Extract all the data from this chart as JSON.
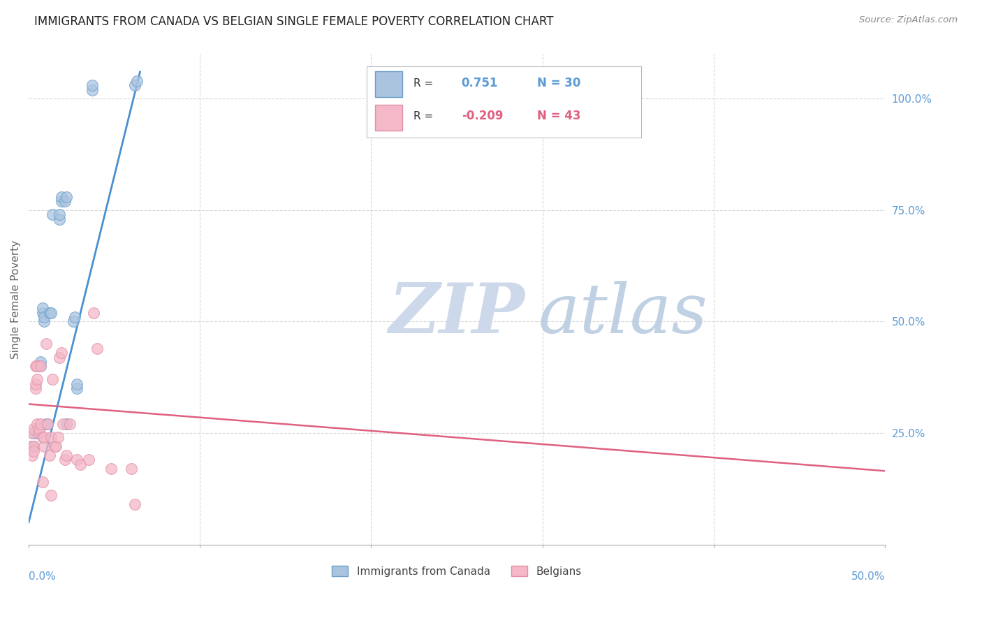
{
  "title": "IMMIGRANTS FROM CANADA VS BELGIAN SINGLE FEMALE POVERTY CORRELATION CHART",
  "source": "Source: ZipAtlas.com",
  "ylabel": "Single Female Poverty",
  "xlim": [
    0.0,
    0.5
  ],
  "ylim": [
    0.0,
    1.1
  ],
  "watermark_zip": "ZIP",
  "watermark_atlas": "atlas",
  "watermark_color_zip": "#c8d4e8",
  "watermark_color_atlas": "#b8cce4",
  "background_color": "#ffffff",
  "title_color": "#222222",
  "axis_label_color": "#5b9bd5",
  "blue_scatter": {
    "x": [
      0.003,
      0.003,
      0.005,
      0.006,
      0.007,
      0.007,
      0.008,
      0.008,
      0.009,
      0.009,
      0.01,
      0.011,
      0.012,
      0.013,
      0.014,
      0.018,
      0.018,
      0.019,
      0.019,
      0.021,
      0.022,
      0.022,
      0.026,
      0.027,
      0.028,
      0.028,
      0.037,
      0.037,
      0.062,
      0.063
    ],
    "y": [
      0.22,
      0.25,
      0.25,
      0.26,
      0.4,
      0.41,
      0.52,
      0.53,
      0.5,
      0.51,
      0.27,
      0.27,
      0.52,
      0.52,
      0.74,
      0.73,
      0.74,
      0.77,
      0.78,
      0.77,
      0.78,
      0.27,
      0.5,
      0.51,
      0.35,
      0.36,
      1.02,
      1.03,
      1.03,
      1.04
    ]
  },
  "pink_scatter": {
    "x": [
      0.001,
      0.002,
      0.002,
      0.003,
      0.003,
      0.003,
      0.004,
      0.004,
      0.004,
      0.005,
      0.005,
      0.005,
      0.006,
      0.006,
      0.007,
      0.007,
      0.008,
      0.008,
      0.009,
      0.009,
      0.01,
      0.011,
      0.012,
      0.013,
      0.013,
      0.014,
      0.015,
      0.016,
      0.017,
      0.018,
      0.019,
      0.02,
      0.021,
      0.022,
      0.024,
      0.028,
      0.03,
      0.035,
      0.038,
      0.04,
      0.048,
      0.06,
      0.062
    ],
    "y": [
      0.22,
      0.2,
      0.25,
      0.26,
      0.22,
      0.21,
      0.4,
      0.35,
      0.36,
      0.27,
      0.4,
      0.37,
      0.25,
      0.26,
      0.4,
      0.27,
      0.14,
      0.24,
      0.22,
      0.24,
      0.45,
      0.27,
      0.2,
      0.11,
      0.24,
      0.37,
      0.22,
      0.22,
      0.24,
      0.42,
      0.43,
      0.27,
      0.19,
      0.2,
      0.27,
      0.19,
      0.18,
      0.19,
      0.52,
      0.44,
      0.17,
      0.17,
      0.09
    ]
  },
  "blue_line": {
    "x0": 0.0,
    "y0": 0.05,
    "x1": 0.065,
    "y1": 1.06
  },
  "pink_line": {
    "x0": 0.0,
    "y0": 0.315,
    "x1": 0.5,
    "y1": 0.165
  },
  "scatter_size": 130,
  "scatter_alpha": 0.75,
  "blue_scatter_color": "#aac4e0",
  "blue_scatter_edge": "#6a9ec8",
  "pink_scatter_color": "#f4b8c8",
  "pink_scatter_edge": "#e090a8",
  "blue_line_color": "#4a90d0",
  "pink_line_color": "#e06080",
  "gridline_style": "--",
  "gridline_color": "#cccccc",
  "gridline_alpha": 0.8,
  "legend_R_color_blue": "#5b9bd5",
  "legend_R_color_pink": "#e06080",
  "legend_N_color_blue": "#5b9bd5",
  "legend_N_color_pink": "#e06080"
}
